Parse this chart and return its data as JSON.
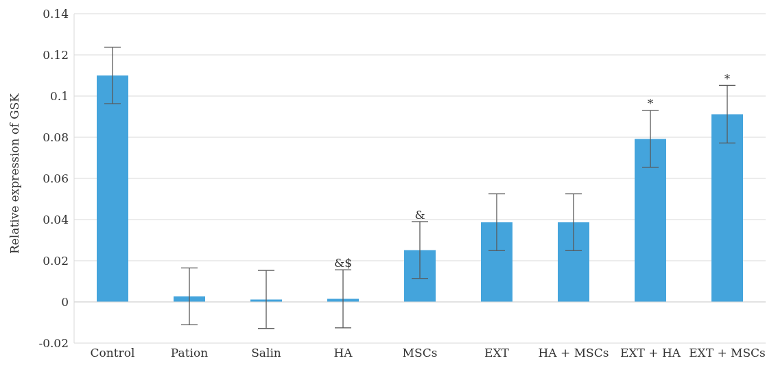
{
  "chart_data": {
    "type": "bar",
    "ylabel": "Relative expression of GSK",
    "categories": [
      "Control",
      "Pation",
      "Salin",
      "HA",
      "MSCs",
      "EXT",
      "HA + MSCs",
      "EXT + HA",
      "EXT + MSCs"
    ],
    "values": [
      0.11,
      0.0027,
      0.0012,
      0.0015,
      0.0252,
      0.0387,
      0.0387,
      0.0792,
      0.0912
    ],
    "errors": [
      0.0137,
      0.0138,
      0.0141,
      0.0141,
      0.0138,
      0.0138,
      0.0138,
      0.0138,
      0.014
    ],
    "color": "#44a4dc",
    "ylim": [
      -0.02,
      0.14
    ],
    "yticks": [
      {
        "value": -0.02,
        "label": "-0.02"
      },
      0,
      0.02,
      0.04,
      0.06,
      0.08,
      0.1,
      0.12,
      0.14
    ],
    "grid": "y",
    "annotations": [
      {
        "text": "&$",
        "x": "HA",
        "y": 0.0156
      },
      {
        "text": "&",
        "x": "MSCs",
        "y": 0.039
      },
      {
        "text": "*",
        "x": "EXT + HA",
        "y": 0.093
      },
      {
        "text": "*",
        "x": "EXT + MSCs",
        "y": 0.105
      }
    ]
  }
}
